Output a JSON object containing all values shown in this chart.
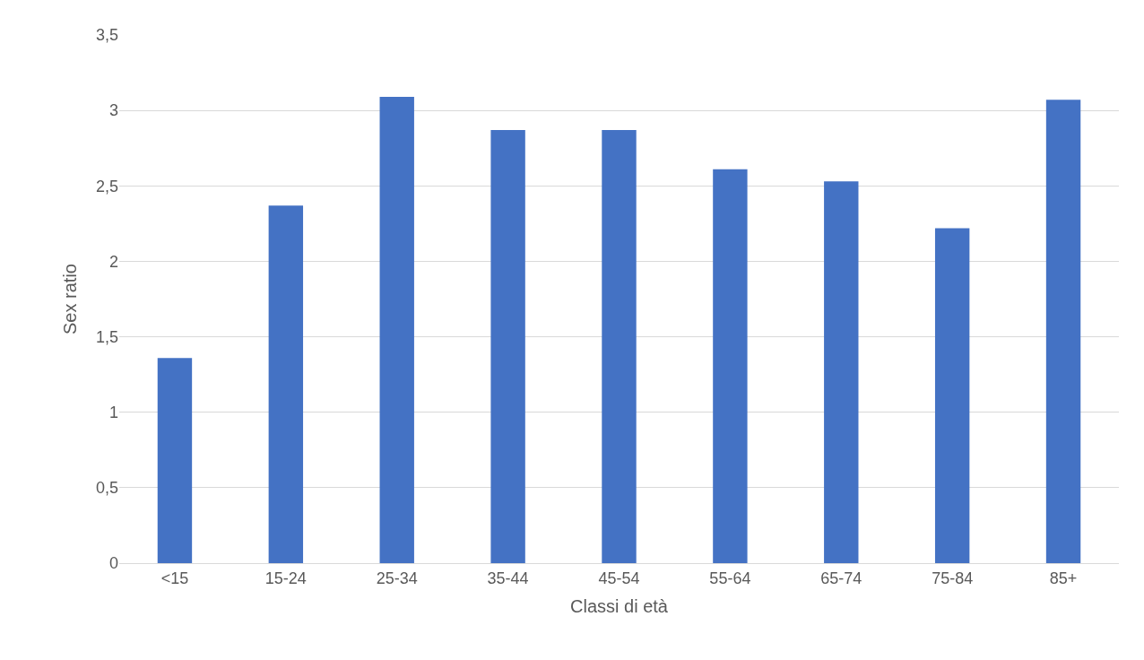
{
  "chart_data": {
    "type": "bar",
    "xlabel": "Classi di età",
    "ylabel": "Sex ratio",
    "categories": [
      "<15",
      "15-24",
      "25-34",
      "35-44",
      "45-54",
      "55-64",
      "65-74",
      "75-84",
      "85+"
    ],
    "values": [
      1.36,
      2.37,
      3.09,
      2.87,
      2.87,
      2.61,
      2.53,
      2.22,
      3.07
    ],
    "color": "#4472c4",
    "ylim": [
      0,
      3.5
    ],
    "yticks": [
      0,
      {
        "value": 0.5,
        "label": "0,5"
      },
      1,
      {
        "value": 1.5,
        "label": "1,5"
      },
      2,
      {
        "value": 2.5,
        "label": "2,5"
      },
      3,
      {
        "value": 3.5,
        "label": "3,5"
      }
    ],
    "grid": "y"
  }
}
